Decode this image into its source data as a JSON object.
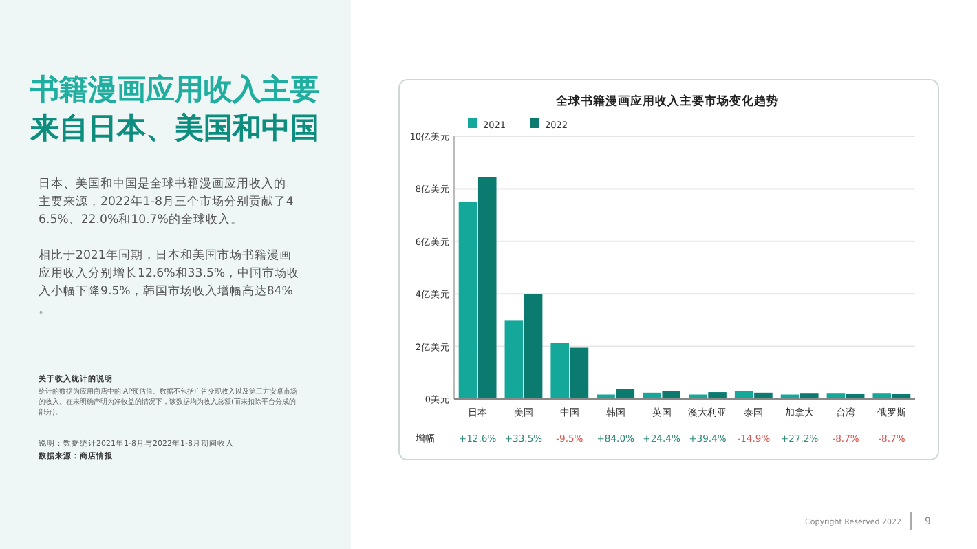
{
  "chart_data": {
    "type": "bar",
    "title": "全球书籍漫画应用收入主要市场变化趋势",
    "subtitle": "书籍漫画应用收入主要来自日本、美国和中国",
    "categories": [
      "日本",
      "美国",
      "中国",
      "韩国",
      "英国",
      "澳大利亚",
      "泰国",
      "加拿大",
      "台湾",
      "俄罗斯"
    ],
    "series": [
      {
        "name": "2021",
        "color": "#14a89a",
        "values": [
          7.5,
          3.0,
          2.13,
          0.17,
          0.24,
          0.17,
          0.3,
          0.17,
          0.23,
          0.23
        ]
      },
      {
        "name": "2022",
        "color": "#0b7b70",
        "values": [
          8.45,
          3.98,
          1.95,
          0.38,
          0.31,
          0.26,
          0.24,
          0.23,
          0.21,
          0.19
        ]
      }
    ],
    "ylim": [
      0,
      10
    ],
    "yticks": [
      {
        "value": 0,
        "label": "0美元"
      },
      {
        "value": 2,
        "label": "2亿美元"
      },
      {
        "value": 4,
        "label": "4亿美元"
      },
      {
        "value": 6,
        "label": "6亿美元"
      },
      {
        "value": 8,
        "label": "8亿美元"
      },
      {
        "value": 10,
        "label": "10亿美元"
      }
    ],
    "grid": "y",
    "legend": "top left",
    "annotations": [
      "增幅",
      "+12.6%",
      "+33.5%",
      "-9.5%",
      "+84.0%",
      "+24.4%",
      "+39.4%",
      "-14.9%",
      "+27.2%",
      "-8.7%",
      "-8.7%",
      "日本、美国和中国是全球书籍漫画应用收入的主要来源，2022年1-8月三个市场分别贡献了46.5%、22.0%和10.7%的全球收入。",
      "相比于2021年同期，日本和美国市场书籍漫画应用收入分别增长12.6%和33.5%，中国市场收入小幅下降9.5%，韩国市场收入增幅高达84%。",
      "关于收入统计的说明",
      "统计的数据为应用商店中的IAP预估值。数据不包括广告变现收入以及第三方安卓市场的收入。在未明确声明为净收益的情况下，该数据均为收入总额(而未扣除平台分成的部分)。",
      "说明：数据统计2021年1-8月与2022年1-8月期间收入",
      "数据来源：商店情报",
      "Copyright Reserved 2022",
      "9"
    ]
  }
}
